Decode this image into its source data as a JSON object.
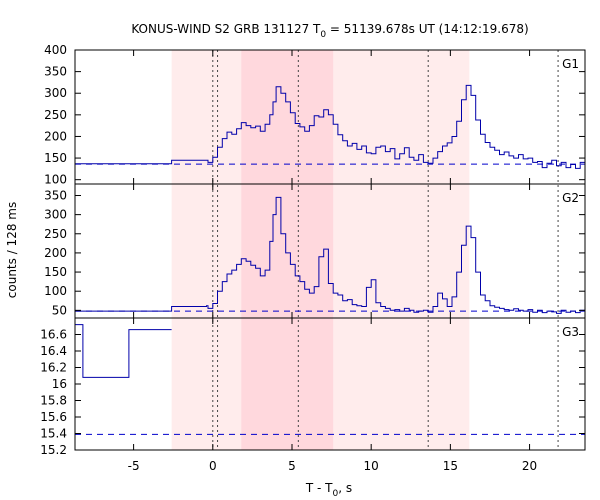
{
  "chart_data": {
    "type": "line",
    "title": "KONUS-WIND S2 GRB 131127 T",
    "title_sub": "0",
    "title_rest": " = 51139.678s UT (14:12:19.678)",
    "xlabel_main": "T - T",
    "xlabel_sub": "0",
    "xlabel_rest": ", s",
    "ylabel": "counts / 128 ms",
    "xlim": [
      -8.7,
      23.5
    ],
    "x_ticks": [
      -5,
      0,
      5,
      10,
      15,
      20
    ],
    "x_tick_labels": [
      "-5",
      "0",
      "5",
      "10",
      "15",
      "20"
    ],
    "colors": {
      "curve": "#0000aa",
      "background": "#0000cc",
      "band_light": "#ffecec",
      "band_dark": "#ffd8dd"
    },
    "bands": [
      {
        "x0": -2.6,
        "x1": 16.2,
        "shade": "light"
      },
      {
        "x0": 1.8,
        "x1": 7.6,
        "shade": "dark"
      }
    ],
    "vlines": [
      0.0,
      0.3,
      5.4,
      13.6,
      21.8
    ],
    "panels": [
      {
        "label": "G1",
        "ylim": [
          90,
          400
        ],
        "y_ticks": [
          100,
          150,
          200,
          250,
          300,
          350,
          400
        ],
        "y_tick_labels": [
          "100",
          "150",
          "200",
          "250",
          "300",
          "350",
          "400"
        ],
        "background": 136,
        "series": [
          [
            -8.7,
            137
          ],
          [
            -2.6,
            145
          ],
          [
            -0.4,
            145
          ],
          [
            -0.3,
            140
          ],
          [
            0.0,
            152
          ],
          [
            0.3,
            175
          ],
          [
            0.6,
            195
          ],
          [
            0.9,
            210
          ],
          [
            1.2,
            205
          ],
          [
            1.5,
            218
          ],
          [
            1.8,
            232
          ],
          [
            2.1,
            225
          ],
          [
            2.4,
            220
          ],
          [
            2.7,
            224
          ],
          [
            3.0,
            212
          ],
          [
            3.3,
            228
          ],
          [
            3.6,
            250
          ],
          [
            3.8,
            280
          ],
          [
            4.0,
            315
          ],
          [
            4.3,
            300
          ],
          [
            4.6,
            280
          ],
          [
            4.9,
            255
          ],
          [
            5.2,
            230
          ],
          [
            5.5,
            222
          ],
          [
            5.8,
            212
          ],
          [
            6.1,
            225
          ],
          [
            6.4,
            248
          ],
          [
            6.7,
            245
          ],
          [
            7.0,
            262
          ],
          [
            7.3,
            250
          ],
          [
            7.6,
            228
          ],
          [
            7.9,
            204
          ],
          [
            8.2,
            190
          ],
          [
            8.5,
            178
          ],
          [
            8.8,
            184
          ],
          [
            9.1,
            170
          ],
          [
            9.4,
            178
          ],
          [
            9.7,
            162
          ],
          [
            10.0,
            160
          ],
          [
            10.3,
            175
          ],
          [
            10.6,
            178
          ],
          [
            10.9,
            165
          ],
          [
            11.2,
            172
          ],
          [
            11.5,
            148
          ],
          [
            11.8,
            160
          ],
          [
            12.1,
            174
          ],
          [
            12.4,
            152
          ],
          [
            12.7,
            145
          ],
          [
            13.0,
            158
          ],
          [
            13.3,
            140
          ],
          [
            13.6,
            138
          ],
          [
            13.9,
            150
          ],
          [
            14.2,
            165
          ],
          [
            14.5,
            178
          ],
          [
            14.8,
            185
          ],
          [
            15.1,
            200
          ],
          [
            15.4,
            235
          ],
          [
            15.7,
            285
          ],
          [
            16.0,
            318
          ],
          [
            16.3,
            295
          ],
          [
            16.6,
            238
          ],
          [
            16.9,
            205
          ],
          [
            17.2,
            186
          ],
          [
            17.5,
            175
          ],
          [
            17.8,
            168
          ],
          [
            18.1,
            158
          ],
          [
            18.4,
            164
          ],
          [
            18.7,
            155
          ],
          [
            19.0,
            150
          ],
          [
            19.3,
            158
          ],
          [
            19.6,
            148
          ],
          [
            19.9,
            150
          ],
          [
            20.2,
            140
          ],
          [
            20.5,
            142
          ],
          [
            20.8,
            128
          ],
          [
            21.1,
            138
          ],
          [
            21.4,
            145
          ],
          [
            21.7,
            132
          ],
          [
            22.0,
            140
          ],
          [
            22.3,
            128
          ],
          [
            22.6,
            135
          ],
          [
            22.9,
            126
          ],
          [
            23.2,
            140
          ],
          [
            23.5,
            140
          ]
        ]
      },
      {
        "label": "G2",
        "ylim": [
          30,
          380
        ],
        "y_ticks": [
          50,
          100,
          150,
          200,
          250,
          300,
          350
        ],
        "y_tick_labels": [
          "50",
          "100",
          "150",
          "200",
          "250",
          "300",
          "350"
        ],
        "background": 48,
        "series": [
          [
            -8.7,
            48
          ],
          [
            -2.6,
            60
          ],
          [
            -0.4,
            62
          ],
          [
            -0.3,
            55
          ],
          [
            0.0,
            68
          ],
          [
            0.3,
            100
          ],
          [
            0.6,
            125
          ],
          [
            0.9,
            145
          ],
          [
            1.2,
            155
          ],
          [
            1.5,
            170
          ],
          [
            1.8,
            185
          ],
          [
            2.1,
            178
          ],
          [
            2.4,
            168
          ],
          [
            2.7,
            160
          ],
          [
            3.0,
            140
          ],
          [
            3.3,
            155
          ],
          [
            3.6,
            230
          ],
          [
            3.8,
            300
          ],
          [
            4.0,
            345
          ],
          [
            4.3,
            250
          ],
          [
            4.6,
            200
          ],
          [
            4.9,
            170
          ],
          [
            5.2,
            140
          ],
          [
            5.5,
            125
          ],
          [
            5.8,
            105
          ],
          [
            6.1,
            95
          ],
          [
            6.4,
            112
          ],
          [
            6.7,
            190
          ],
          [
            7.0,
            210
          ],
          [
            7.3,
            120
          ],
          [
            7.6,
            95
          ],
          [
            7.9,
            90
          ],
          [
            8.2,
            75
          ],
          [
            8.5,
            78
          ],
          [
            8.8,
            65
          ],
          [
            9.1,
            62
          ],
          [
            9.4,
            60
          ],
          [
            9.7,
            110
          ],
          [
            10.0,
            130
          ],
          [
            10.3,
            70
          ],
          [
            10.6,
            60
          ],
          [
            10.9,
            55
          ],
          [
            11.2,
            50
          ],
          [
            11.5,
            52
          ],
          [
            11.8,
            48
          ],
          [
            12.1,
            55
          ],
          [
            12.4,
            50
          ],
          [
            12.7,
            45
          ],
          [
            13.0,
            48
          ],
          [
            13.3,
            50
          ],
          [
            13.6,
            45
          ],
          [
            13.9,
            60
          ],
          [
            14.2,
            95
          ],
          [
            14.5,
            80
          ],
          [
            14.8,
            60
          ],
          [
            15.1,
            85
          ],
          [
            15.4,
            150
          ],
          [
            15.7,
            220
          ],
          [
            16.0,
            270
          ],
          [
            16.3,
            240
          ],
          [
            16.6,
            150
          ],
          [
            16.9,
            90
          ],
          [
            17.2,
            75
          ],
          [
            17.5,
            62
          ],
          [
            17.8,
            58
          ],
          [
            18.1,
            55
          ],
          [
            18.4,
            52
          ],
          [
            18.7,
            50
          ],
          [
            19.0,
            54
          ],
          [
            19.3,
            50
          ],
          [
            19.6,
            48
          ],
          [
            19.9,
            52
          ],
          [
            20.2,
            45
          ],
          [
            20.5,
            50
          ],
          [
            20.8,
            44
          ],
          [
            21.1,
            48
          ],
          [
            21.4,
            46
          ],
          [
            21.7,
            42
          ],
          [
            22.0,
            50
          ],
          [
            22.3,
            45
          ],
          [
            22.6,
            48
          ],
          [
            22.9,
            44
          ],
          [
            23.2,
            50
          ],
          [
            23.5,
            50
          ]
        ]
      },
      {
        "label": "G3",
        "ylim": [
          15.2,
          16.8
        ],
        "y_ticks": [
          15.2,
          15.4,
          15.6,
          15.8,
          16.0,
          16.2,
          16.4,
          16.6
        ],
        "y_tick_labels": [
          "15.2",
          "15.4",
          "15.6",
          "15.8",
          "16",
          "16.2",
          "16.4",
          "16.6"
        ],
        "background": 15.39,
        "series": [
          [
            -8.7,
            16.72
          ],
          [
            -8.2,
            16.72
          ],
          [
            -8.2,
            16.08
          ],
          [
            -5.3,
            16.08
          ],
          [
            -5.3,
            16.66
          ],
          [
            -2.6,
            16.66
          ]
        ]
      }
    ]
  }
}
